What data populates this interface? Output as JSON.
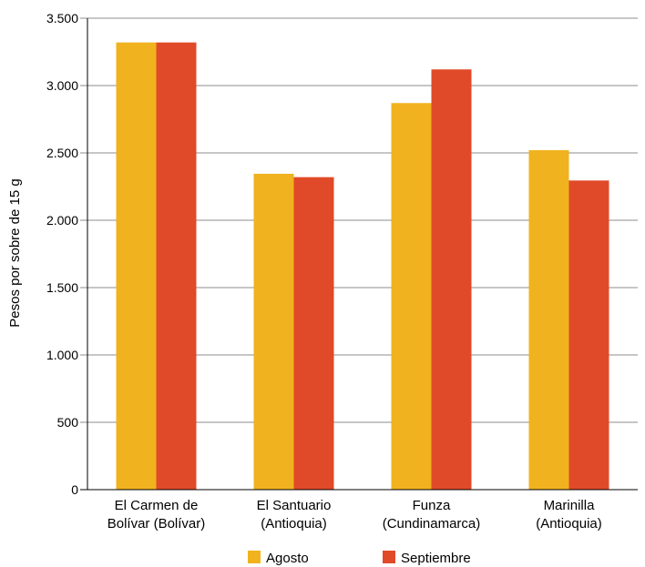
{
  "chart_data": {
    "type": "bar",
    "title": "",
    "xlabel": "",
    "ylabel": "Pesos por sobre de 15 g",
    "ylim": [
      0,
      3500
    ],
    "yticks": [
      0,
      500,
      1000,
      1500,
      2000,
      2500,
      3000,
      3500
    ],
    "ytick_labels": [
      "0",
      "500",
      "1.000",
      "1.500",
      "2.000",
      "2.500",
      "3.000",
      "3.500"
    ],
    "grid": true,
    "legend_position": "bottom",
    "categories": [
      [
        "El Carmen de",
        "Bolívar (Bolívar)"
      ],
      [
        "El Santuario",
        "(Antioquia)"
      ],
      [
        "Funza",
        "(Cundinamarca)"
      ],
      [
        "Marinilla",
        "(Antioquia)"
      ]
    ],
    "series": [
      {
        "name": "Agosto",
        "color": "#F0B21E",
        "values": [
          3320,
          2345,
          2870,
          2520
        ]
      },
      {
        "name": "Septiembre",
        "color": "#E04A28",
        "values": [
          3320,
          2320,
          3120,
          2295
        ]
      }
    ]
  }
}
